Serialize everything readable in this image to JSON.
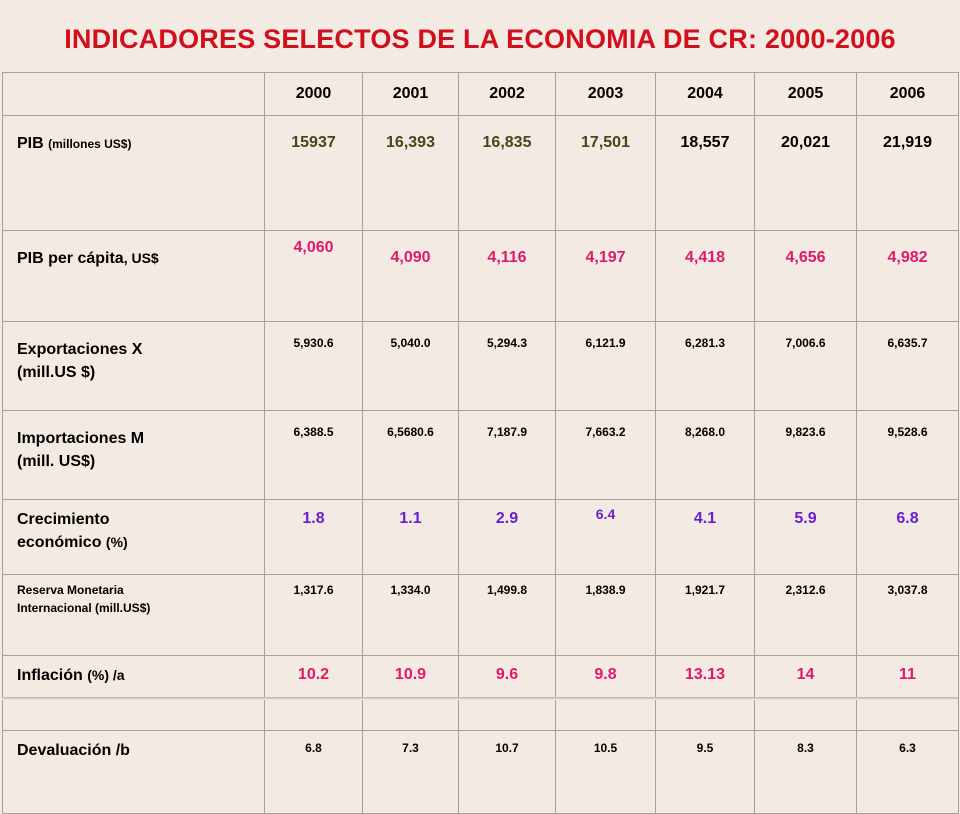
{
  "title": "INDICADORES SELECTOS DE LA  ECONOMIA DE CR: 2000-2006",
  "years": [
    "2000",
    "2001",
    "2002",
    "2003",
    "2004",
    "2005",
    "2006"
  ],
  "rows": [
    {
      "label_main": "PIB ",
      "label_sub": "(millones US$)",
      "values": [
        "15937",
        "16,393",
        "16,835",
        "17,501",
        "18,557",
        "20,021",
        "21,919"
      ],
      "color": "#4a4419"
    },
    {
      "label_main": "PIB per cápita",
      "label_sub": ", US$",
      "values": [
        "4,060",
        "4,090",
        "4,116",
        "4,197",
        "4,418",
        "4,656",
        "4,982"
      ],
      "color": "#e0186c"
    },
    {
      "label_main": "Exportaciones  X",
      "label_sub": "(mill.US $)",
      "values": [
        "5,930.6",
        "5,040.0",
        "5,294.3",
        "6,121.9",
        "6,281.3",
        "7,006.6",
        "6,635.7"
      ],
      "color": "#000000"
    },
    {
      "label_main": "Importaciones  M",
      "label_sub": "(mill. US$)",
      "values": [
        "6,388.5",
        "6,5680.6",
        "7,187.9",
        "7,663.2",
        "8,268.0",
        "9,823.6",
        "9,528.6"
      ],
      "color": "#000000"
    },
    {
      "label_main": "Crecimiento",
      "label_sub": "económico ",
      "label_unit": "(%)",
      "values": [
        "1.8",
        "1.1",
        "2.9",
        "6.4",
        "4.1",
        "5.9",
        "6.8"
      ],
      "color": "#6a1ed2"
    },
    {
      "label_main": "Reserva Monetaria",
      "label_sub": "Internacional (mill.US$)",
      "values": [
        "1,317.6",
        "1,334.0",
        "1,499.8",
        "1,838.9",
        "1,921.7",
        "2,312.6",
        "3,037.8"
      ],
      "color": "#000000"
    },
    {
      "label_main": "Inflación ",
      "label_unit": "(%)",
      "label_sub": " /a",
      "values": [
        "10.2",
        "10.9",
        "9.6",
        "9.8",
        "13.13",
        "14",
        "11"
      ],
      "color": "#e0186c"
    },
    {
      "label_main": "Devaluación /b",
      "values": [
        "6.8",
        "7.3",
        "10.7",
        "10.5",
        "9.5",
        "8.3",
        "6.3"
      ],
      "color": "#000000"
    }
  ]
}
